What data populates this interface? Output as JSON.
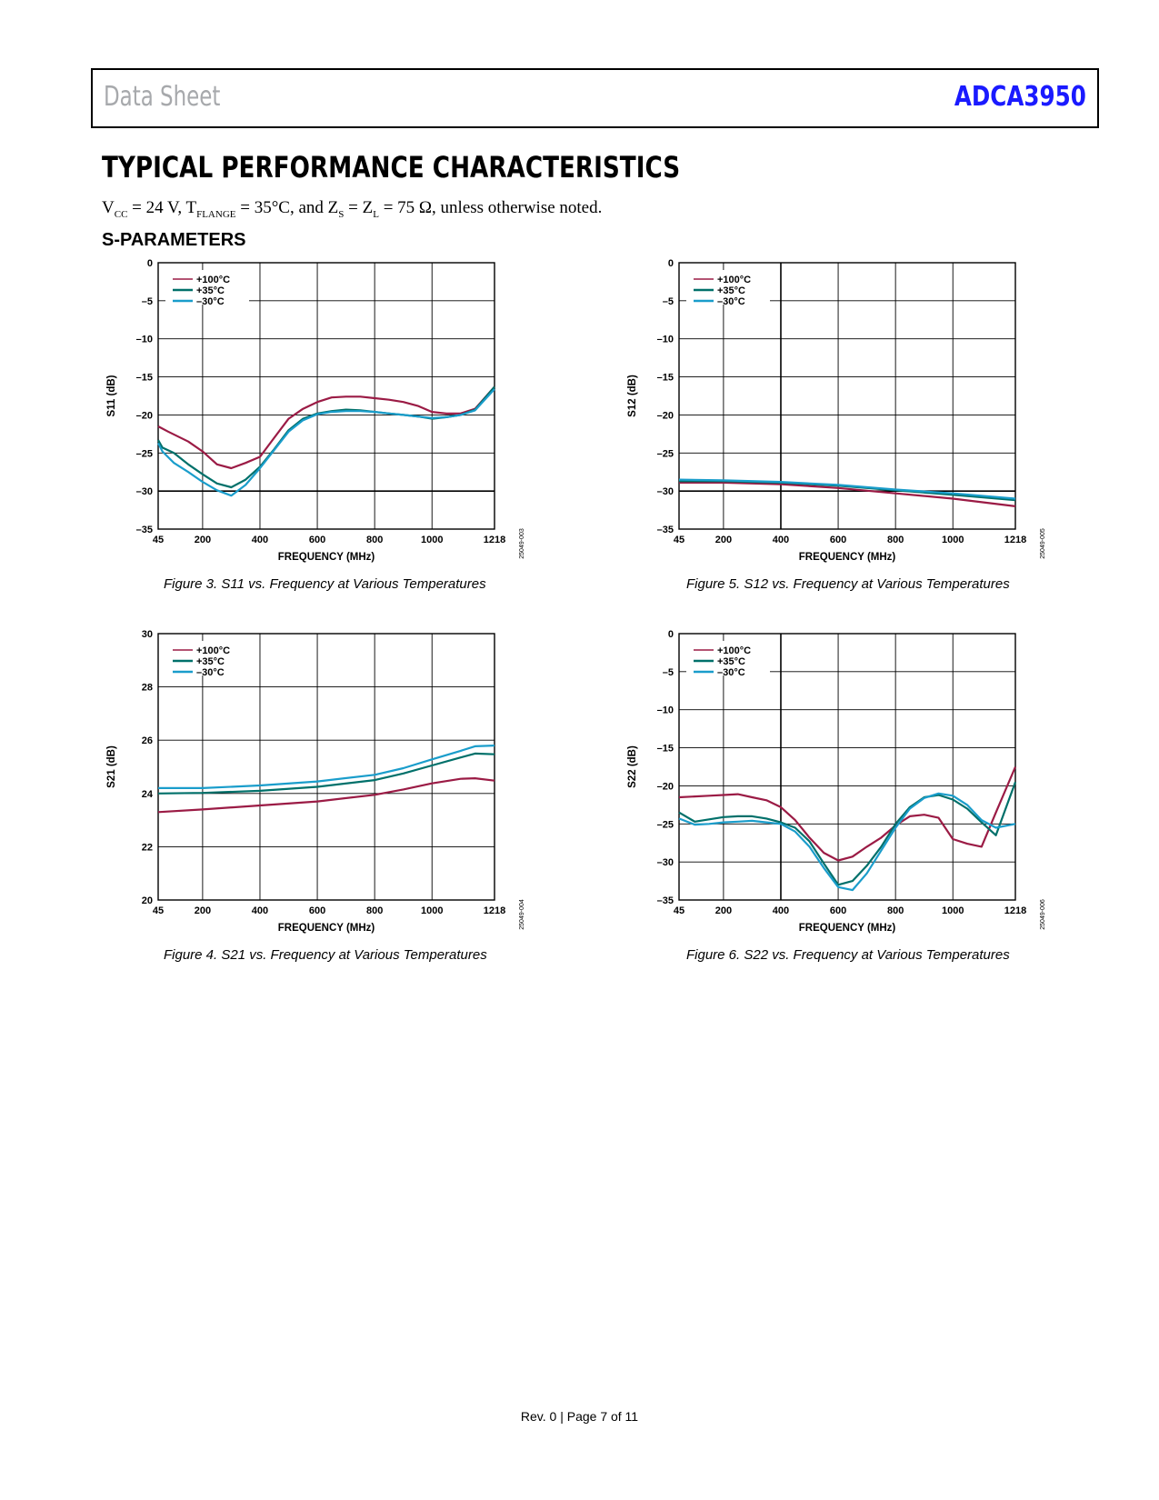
{
  "header": {
    "left": "Data Sheet",
    "right": "ADCA3950"
  },
  "section_title": "TYPICAL PERFORMANCE CHARACTERISTICS",
  "conditions": {
    "v": "V",
    "v_sub": "CC",
    "p1": " = 24 V, T",
    "t_sub": "FLANGE",
    "p2": " = 35°C, and Z",
    "zs_sub": "S",
    "p3": " = Z",
    "zl_sub": "L",
    "p4": " = 75 Ω, unless otherwise noted."
  },
  "subsection": "S-PARAMETERS",
  "colors": {
    "t100": "#9b1b45",
    "t35": "#00706a",
    "tm30": "#1a9dcb"
  },
  "chart_data": [
    {
      "id": "s11",
      "type": "line",
      "caption": "Figure 3. S11 vs. Frequency at Various Temperatures",
      "code": "25049-003",
      "xlabel": "FREQUENCY (MHz)",
      "ylabel": "S11 (dB)",
      "xlim": [
        45,
        1218
      ],
      "ylim": [
        -35,
        0
      ],
      "xticks": [
        45,
        200,
        400,
        600,
        800,
        1000,
        1218
      ],
      "xtick_labels": [
        "45",
        "200",
        "400",
        "600",
        "800",
        "1000",
        "1218"
      ],
      "yticks": [
        0,
        -5,
        -10,
        -15,
        -20,
        -25,
        -30,
        -35
      ],
      "ytick_labels": [
        "0",
        "–5",
        "–10",
        "–15",
        "–20",
        "–25",
        "–30",
        "–35"
      ],
      "legend": [
        "+100°C",
        "+35°C",
        "–30°C"
      ],
      "series": [
        {
          "name": "+100°C",
          "x": [
            45,
            80,
            150,
            200,
            250,
            300,
            350,
            400,
            450,
            500,
            550,
            600,
            650,
            700,
            750,
            800,
            850,
            900,
            950,
            1000,
            1050,
            1100,
            1150,
            1218
          ],
          "y": [
            -21.5,
            -22.2,
            -23.5,
            -24.8,
            -26.5,
            -27.0,
            -26.3,
            -25.5,
            -23.0,
            -20.5,
            -19.2,
            -18.3,
            -17.7,
            -17.6,
            -17.6,
            -17.8,
            -18.0,
            -18.3,
            -18.8,
            -19.6,
            -19.8,
            -19.8,
            -19.2,
            -16.3
          ]
        },
        {
          "name": "+35°C",
          "x": [
            45,
            60,
            100,
            150,
            200,
            250,
            300,
            350,
            400,
            450,
            500,
            550,
            600,
            650,
            700,
            750,
            800,
            850,
            900,
            950,
            1000,
            1050,
            1100,
            1150,
            1218
          ],
          "y": [
            -23.3,
            -24.3,
            -25.0,
            -26.5,
            -27.8,
            -29.0,
            -29.5,
            -28.5,
            -26.8,
            -24.5,
            -22.0,
            -20.5,
            -19.8,
            -19.5,
            -19.3,
            -19.4,
            -19.6,
            -19.8,
            -20.0,
            -20.2,
            -20.5,
            -20.3,
            -20.0,
            -19.3,
            -16.3
          ]
        },
        {
          "name": "–30°C",
          "x": [
            45,
            60,
            100,
            150,
            200,
            250,
            300,
            350,
            400,
            450,
            500,
            550,
            600,
            650,
            700,
            750,
            800,
            850,
            900,
            950,
            1000,
            1050,
            1100,
            1150,
            1218
          ],
          "y": [
            -23.7,
            -24.8,
            -26.3,
            -27.5,
            -28.8,
            -29.9,
            -30.6,
            -29.2,
            -27.0,
            -24.6,
            -22.2,
            -20.7,
            -19.9,
            -19.6,
            -19.5,
            -19.5,
            -19.6,
            -19.8,
            -20.0,
            -20.2,
            -20.4,
            -20.3,
            -20.0,
            -19.4,
            -16.6
          ]
        }
      ]
    },
    {
      "id": "s12",
      "type": "line",
      "caption": "Figure 5. S12 vs. Frequency at Various Temperatures",
      "code": "25049-005",
      "xlabel": "FREQUENCY (MHz)",
      "ylabel": "S12 (dB)",
      "xlim": [
        45,
        1218
      ],
      "ylim": [
        -35,
        0
      ],
      "xticks": [
        45,
        200,
        400,
        600,
        800,
        1000,
        1218
      ],
      "xtick_labels": [
        "45",
        "200",
        "400",
        "600",
        "800",
        "1000",
        "1218"
      ],
      "yticks": [
        0,
        -5,
        -10,
        -15,
        -20,
        -25,
        -30,
        -35
      ],
      "ytick_labels": [
        "0",
        "–5",
        "–10",
        "–15",
        "–20",
        "–25",
        "–30",
        "–35"
      ],
      "legend": [
        "+100°C",
        "+35°C",
        "–30°C"
      ],
      "series": [
        {
          "name": "+100°C",
          "x": [
            45,
            200,
            400,
            600,
            800,
            1000,
            1218
          ],
          "y": [
            -28.9,
            -28.9,
            -29.1,
            -29.6,
            -30.3,
            -31.0,
            -32.0
          ]
        },
        {
          "name": "+35°C",
          "x": [
            45,
            200,
            400,
            600,
            800,
            1000,
            1218
          ],
          "y": [
            -28.7,
            -28.7,
            -28.9,
            -29.3,
            -29.9,
            -30.5,
            -31.2
          ]
        },
        {
          "name": "–30°C",
          "x": [
            45,
            200,
            400,
            600,
            800,
            1000,
            1218
          ],
          "y": [
            -28.5,
            -28.6,
            -28.8,
            -29.2,
            -29.8,
            -30.3,
            -31.0
          ]
        }
      ]
    },
    {
      "id": "s21",
      "type": "line",
      "caption": "Figure 4. S21 vs. Frequency at Various Temperatures",
      "code": "25049-004",
      "xlabel": "FREQUENCY (MHz)",
      "ylabel": "S21 (dB)",
      "xlim": [
        45,
        1218
      ],
      "ylim": [
        20,
        30
      ],
      "xticks": [
        45,
        200,
        400,
        600,
        800,
        1000,
        1218
      ],
      "xtick_labels": [
        "45",
        "200",
        "400",
        "600",
        "800",
        "1000",
        "1218"
      ],
      "yticks": [
        30,
        28,
        26,
        24,
        22,
        20
      ],
      "ytick_labels": [
        "30",
        "28",
        "26",
        "24",
        "22",
        "20"
      ],
      "legend": [
        "+100°C",
        "+35°C",
        "–30°C"
      ],
      "series": [
        {
          "name": "+100°C",
          "x": [
            45,
            200,
            400,
            600,
            800,
            900,
            1000,
            1100,
            1150,
            1218
          ],
          "y": [
            23.3,
            23.4,
            23.55,
            23.7,
            23.95,
            24.15,
            24.38,
            24.55,
            24.57,
            24.48
          ]
        },
        {
          "name": "+35°C",
          "x": [
            45,
            200,
            400,
            600,
            800,
            900,
            1000,
            1100,
            1150,
            1218
          ],
          "y": [
            24.0,
            24.02,
            24.1,
            24.25,
            24.5,
            24.75,
            25.05,
            25.35,
            25.5,
            25.47
          ]
        },
        {
          "name": "–30°C",
          "x": [
            45,
            200,
            400,
            600,
            800,
            900,
            1000,
            1100,
            1150,
            1218
          ],
          "y": [
            24.2,
            24.2,
            24.3,
            24.45,
            24.7,
            24.95,
            25.28,
            25.6,
            25.77,
            25.8
          ]
        }
      ]
    },
    {
      "id": "s22",
      "type": "line",
      "caption": "Figure 6. S22 vs. Frequency at Various Temperatures",
      "code": "25049-006",
      "xlabel": "FREQUENCY (MHz)",
      "ylabel": "S22 (dB)",
      "xlim": [
        45,
        1218
      ],
      "ylim": [
        -35,
        0
      ],
      "xticks": [
        45,
        200,
        400,
        600,
        800,
        1000,
        1218
      ],
      "xtick_labels": [
        "45",
        "200",
        "400",
        "600",
        "800",
        "1000",
        "1218"
      ],
      "yticks": [
        0,
        -5,
        -10,
        -15,
        -20,
        -25,
        -30,
        -35
      ],
      "ytick_labels": [
        "0",
        "–5",
        "–10",
        "–15",
        "–20",
        "–25",
        "–30",
        "–35"
      ],
      "legend": [
        "+100°C",
        "+35°C",
        "–30°C"
      ],
      "series": [
        {
          "name": "+100°C",
          "x": [
            45,
            100,
            150,
            200,
            250,
            300,
            350,
            400,
            450,
            500,
            550,
            600,
            650,
            700,
            750,
            800,
            850,
            900,
            950,
            1000,
            1050,
            1100,
            1150,
            1218
          ],
          "y": [
            -21.5,
            -21.4,
            -21.3,
            -21.2,
            -21.1,
            -21.5,
            -21.9,
            -22.8,
            -24.5,
            -26.8,
            -28.8,
            -29.8,
            -29.3,
            -28.0,
            -26.8,
            -25.2,
            -24.0,
            -23.8,
            -24.2,
            -27.0,
            -27.6,
            -28.0,
            -23.5,
            -17.5
          ]
        },
        {
          "name": "+35°C",
          "x": [
            45,
            100,
            150,
            200,
            250,
            300,
            350,
            400,
            450,
            500,
            550,
            600,
            650,
            700,
            750,
            800,
            850,
            900,
            950,
            1000,
            1050,
            1100,
            1150,
            1218
          ],
          "y": [
            -23.5,
            -24.7,
            -24.4,
            -24.1,
            -24.0,
            -24.0,
            -24.3,
            -24.8,
            -25.5,
            -27.3,
            -30.2,
            -33.0,
            -32.5,
            -30.5,
            -28.0,
            -25.0,
            -22.8,
            -21.5,
            -21.2,
            -21.8,
            -23.0,
            -24.8,
            -26.5,
            -19.5
          ]
        },
        {
          "name": "–30°C",
          "x": [
            45,
            100,
            150,
            200,
            250,
            300,
            350,
            400,
            450,
            500,
            550,
            600,
            650,
            700,
            750,
            800,
            850,
            900,
            950,
            1000,
            1050,
            1100,
            1150,
            1218
          ],
          "y": [
            -24.3,
            -25.1,
            -25.0,
            -24.8,
            -24.7,
            -24.6,
            -24.8,
            -25.0,
            -26.0,
            -28.0,
            -30.8,
            -33.3,
            -33.7,
            -31.5,
            -28.5,
            -25.5,
            -23.0,
            -21.6,
            -21.0,
            -21.3,
            -22.5,
            -24.5,
            -25.5,
            -25.0
          ]
        }
      ]
    }
  ],
  "footer": "Rev. 0 | Page 7 of 11"
}
